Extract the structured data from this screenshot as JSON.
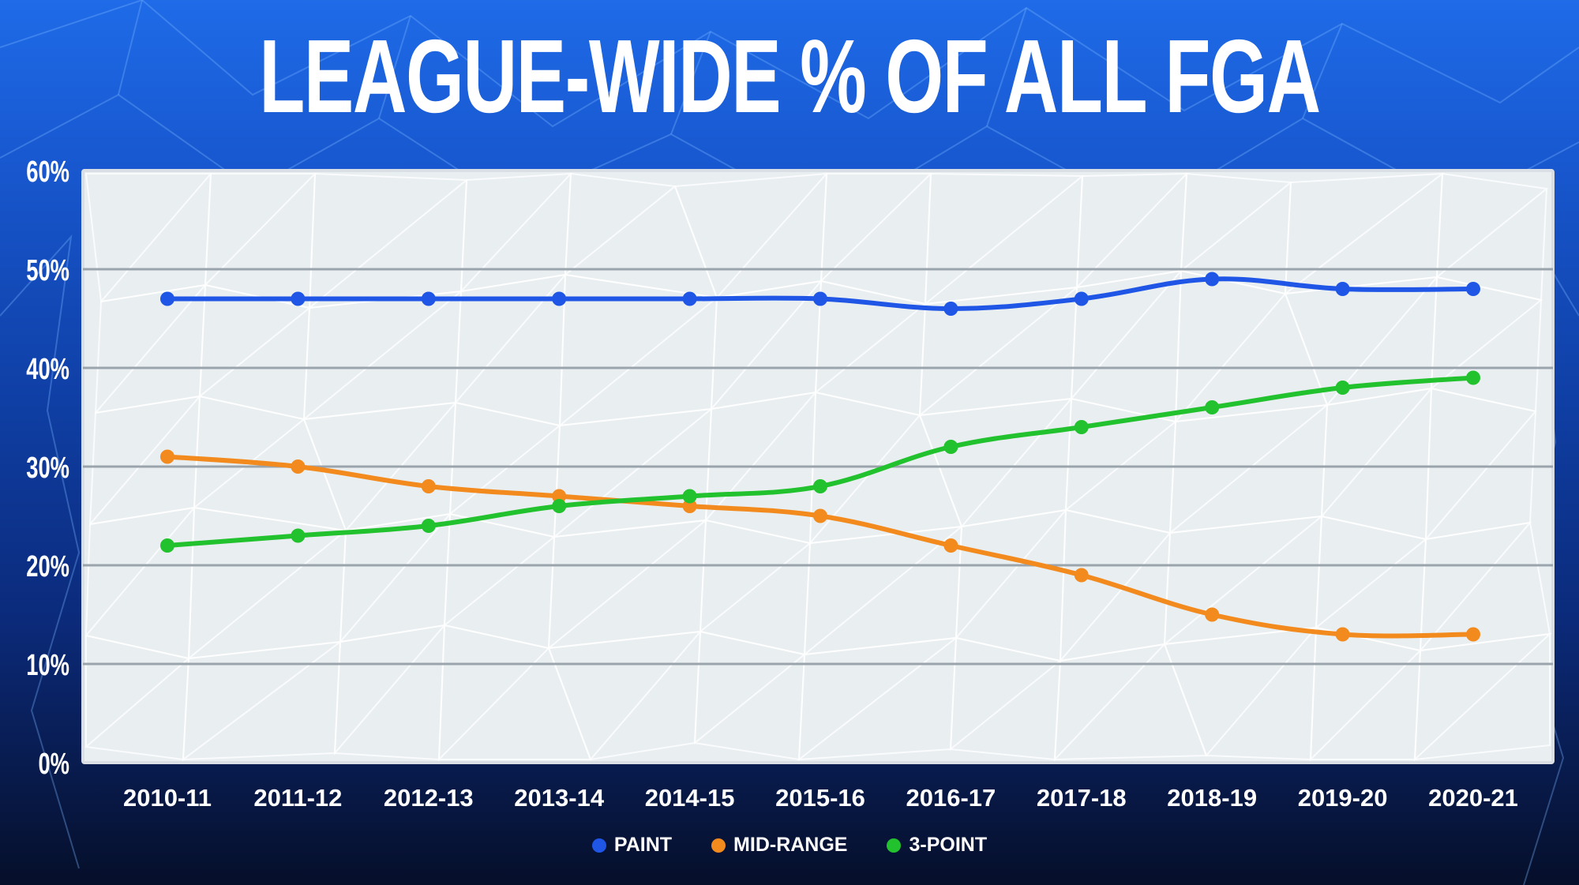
{
  "title": "LEAGUE-WIDE % OF ALL FGA",
  "colors": {
    "paint": "#1f56e6",
    "mid_range": "#f28a1e",
    "three_point": "#22c12e",
    "plot_bg": "#e9eef1",
    "grid": "#9aa4ad"
  },
  "legend": [
    {
      "label": "PAINT",
      "color": "#1f56e6",
      "icon": "dot-icon"
    },
    {
      "label": "MID-RANGE",
      "color": "#f28a1e",
      "icon": "dot-icon"
    },
    {
      "label": "3-POINT",
      "color": "#22c12e",
      "icon": "dot-icon"
    }
  ],
  "chart_data": {
    "type": "line",
    "title": "LEAGUE-WIDE % OF ALL FGA",
    "categories": [
      "2010-11",
      "2011-12",
      "2012-13",
      "2013-14",
      "2014-15",
      "2015-16",
      "2016-17",
      "2017-18",
      "2018-19",
      "2019-20",
      "2020-21"
    ],
    "series": [
      {
        "name": "PAINT",
        "color": "#1f56e6",
        "values": [
          47,
          47,
          47,
          47,
          47,
          47,
          46,
          47,
          49,
          48,
          48
        ]
      },
      {
        "name": "MID-RANGE",
        "color": "#f28a1e",
        "values": [
          31,
          30,
          28,
          27,
          26,
          25,
          22,
          19,
          15,
          13,
          13
        ]
      },
      {
        "name": "3-POINT",
        "color": "#22c12e",
        "values": [
          22,
          23,
          24,
          26,
          27,
          28,
          32,
          34,
          36,
          38,
          39
        ]
      }
    ],
    "yticks": [
      "0%",
      "10%",
      "20%",
      "30%",
      "40%",
      "50%",
      "60%"
    ],
    "ylim": [
      0,
      60
    ],
    "grid": true,
    "legend_position": "bottom"
  }
}
